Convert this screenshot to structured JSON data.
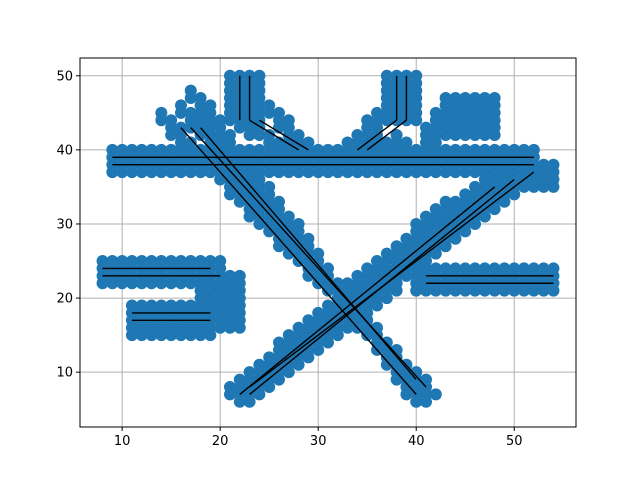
{
  "figure": {
    "background": "#ffffff"
  },
  "chart_data": {
    "type": "scatter",
    "title": "",
    "xlabel": "",
    "ylabel": "",
    "xlim": [
      5.7,
      56.3
    ],
    "ylim": [
      2.6,
      52.4
    ],
    "xticks": [
      10,
      20,
      30,
      40,
      50
    ],
    "yticks": [
      10,
      20,
      30,
      40,
      50
    ],
    "grid": true,
    "legend": "none",
    "colors": {
      "marker": "#1f77b4",
      "line": "#000000",
      "grid": "#b0b0b0",
      "axes": "#000000"
    },
    "marker_clusters": [
      {
        "x": [
          9,
          52
        ],
        "y": [
          37,
          40
        ]
      },
      {
        "x": [
          8,
          20
        ],
        "y": [
          22,
          25
        ]
      },
      {
        "x": [
          11,
          19
        ],
        "y": [
          15,
          19
        ]
      },
      {
        "x": [
          18,
          22
        ],
        "y": [
          16,
          23
        ]
      },
      {
        "x": [
          21,
          24
        ],
        "y": [
          44,
          50
        ]
      },
      {
        "x": [
          37,
          40
        ],
        "y": [
          44,
          50
        ]
      },
      {
        "x": [
          40,
          54
        ],
        "y": [
          21,
          24
        ]
      },
      {
        "x": [
          43,
          48
        ],
        "y": [
          42,
          47
        ]
      },
      {
        "x": [
          47,
          54
        ],
        "y": [
          35,
          38
        ]
      }
    ],
    "marker_lines": [
      {
        "from": [
          14,
          44
        ],
        "to": [
          41,
          7
        ]
      },
      {
        "from": [
          16,
          45
        ],
        "to": [
          40,
          8
        ]
      },
      {
        "from": [
          17,
          47
        ],
        "to": [
          40,
          6
        ]
      },
      {
        "from": [
          22,
          8
        ],
        "to": [
          43,
          32
        ]
      },
      {
        "from": [
          21,
          7
        ],
        "to": [
          47,
          35
        ]
      },
      {
        "from": [
          22,
          6
        ],
        "to": [
          52,
          37
        ]
      },
      {
        "from": [
          22,
          43
        ],
        "to": [
          28,
          39
        ]
      },
      {
        "from": [
          24,
          46
        ],
        "to": [
          28,
          41
        ]
      },
      {
        "from": [
          38,
          41
        ],
        "to": [
          34,
          38
        ]
      },
      {
        "from": [
          36,
          44
        ],
        "to": [
          33,
          40
        ]
      },
      {
        "from": [
          42,
          44
        ],
        "to": [
          40,
          38
        ]
      }
    ],
    "black_lines": [
      {
        "from": [
          9,
          38
        ],
        "to": [
          52,
          38
        ]
      },
      {
        "from": [
          9,
          39
        ],
        "to": [
          52,
          39
        ]
      },
      {
        "from": [
          8,
          23
        ],
        "to": [
          20,
          23
        ]
      },
      {
        "from": [
          8,
          24
        ],
        "to": [
          19,
          24
        ]
      },
      {
        "from": [
          11,
          17
        ],
        "to": [
          19,
          17
        ]
      },
      {
        "from": [
          11,
          18
        ],
        "to": [
          19,
          18
        ]
      },
      {
        "from": [
          41,
          22
        ],
        "to": [
          54,
          22
        ]
      },
      {
        "from": [
          41,
          23
        ],
        "to": [
          54,
          23
        ]
      },
      {
        "from": [
          22,
          44
        ],
        "to": [
          22,
          50
        ]
      },
      {
        "from": [
          23,
          44
        ],
        "to": [
          23,
          50
        ]
      },
      {
        "from": [
          38,
          44
        ],
        "to": [
          38,
          50
        ]
      },
      {
        "from": [
          39,
          44
        ],
        "to": [
          39,
          50
        ]
      },
      {
        "from": [
          16,
          43
        ],
        "to": [
          40,
          7
        ]
      },
      {
        "from": [
          17,
          43
        ],
        "to": [
          41,
          8
        ]
      },
      {
        "from": [
          18,
          43
        ],
        "to": [
          40,
          9
        ]
      },
      {
        "from": [
          22,
          7
        ],
        "to": [
          48,
          35
        ]
      },
      {
        "from": [
          23,
          7
        ],
        "to": [
          50,
          36
        ]
      },
      {
        "from": [
          23,
          8
        ],
        "to": [
          52,
          37
        ]
      },
      {
        "from": [
          23,
          44
        ],
        "to": [
          28,
          40
        ]
      },
      {
        "from": [
          24,
          44
        ],
        "to": [
          29,
          40
        ]
      },
      {
        "from": [
          38,
          44
        ],
        "to": [
          34,
          40
        ]
      },
      {
        "from": [
          39,
          44
        ],
        "to": [
          35,
          40
        ]
      }
    ]
  }
}
